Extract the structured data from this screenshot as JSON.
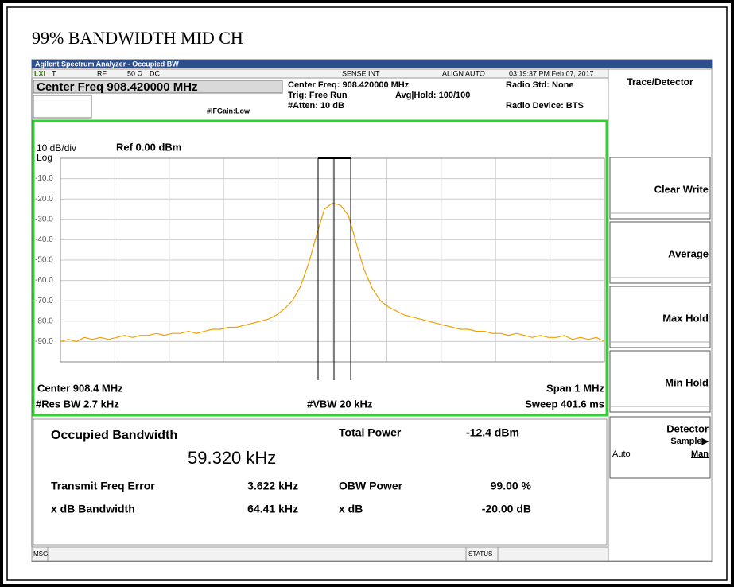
{
  "title": "99% BANDWIDTH MID CH",
  "window_title": "Agilent Spectrum Analyzer - Occupied BW",
  "status_bar": {
    "lxi": "LXI",
    "t": "T",
    "rf": "RF",
    "impedance": "50 Ω",
    "coupling": "DC",
    "sense": "SENSE:INT",
    "align": "ALIGN AUTO",
    "timestamp": "03:19:37 PM Feb 07, 2017"
  },
  "header": {
    "center_freq_box": "Center Freq 908.420000 MHz",
    "center_freq": "Center Freq: 908.420000 MHz",
    "trig": "Trig: Free Run",
    "avg_hold": "Avg|Hold: 100/100",
    "if_gain": "#IFGain:Low",
    "atten": "#Atten: 10 dB",
    "radio_std": "Radio Std: None",
    "radio_device": "Radio Device: BTS"
  },
  "plot": {
    "type": "line",
    "scale": "10 dB/div",
    "log": "Log",
    "ref": "Ref 0.00 dBm",
    "ylim": [
      -100,
      0
    ],
    "yticks": [
      {
        "value": -10,
        "label": "-10.0"
      },
      {
        "value": -20,
        "label": "-20.0"
      },
      {
        "value": -30,
        "label": "-30.0"
      },
      {
        "value": -40,
        "label": "-40.0"
      },
      {
        "value": -50,
        "label": "-50.0"
      },
      {
        "value": -60,
        "label": "-60.0"
      },
      {
        "value": -70,
        "label": "-70.0"
      },
      {
        "value": -80,
        "label": "-80.0"
      },
      {
        "value": -90,
        "label": "-90.0"
      }
    ],
    "color": "#f0a000",
    "values": [
      -90,
      -89,
      -90,
      -88,
      -89,
      -88,
      -89,
      -88,
      -87,
      -88,
      -87,
      -87,
      -86,
      -87,
      -86,
      -86,
      -85,
      -86,
      -85,
      -84,
      -84,
      -83,
      -83,
      -82,
      -81,
      -80,
      -79,
      -77,
      -74,
      -70,
      -63,
      -52,
      -38,
      -25,
      -22,
      -23,
      -28,
      -42,
      -55,
      -64,
      -70,
      -73,
      -75,
      -77,
      -78,
      -79,
      -80,
      -81,
      -82,
      -83,
      -84,
      -84,
      -85,
      -85,
      -86,
      -86,
      -87,
      -86,
      -87,
      -88,
      -87,
      -88,
      -88,
      -87,
      -89,
      -88,
      -89,
      -88,
      -90
    ],
    "center": "Center 908.4 MHz",
    "span": "Span 1 MHz",
    "res_bw": "#Res BW 2.7 kHz",
    "vbw": "#VBW 20 kHz",
    "sweep": "Sweep 401.6 ms"
  },
  "results": {
    "obw_label": "Occupied Bandwidth",
    "obw_value": "59.320 kHz",
    "total_power_label": "Total Power",
    "total_power_value": "-12.4 dBm",
    "freq_error_label": "Transmit Freq Error",
    "freq_error_value": "3.622 kHz",
    "obw_power_label": "OBW Power",
    "obw_power_value": "99.00 %",
    "xdb_bw_label": "x dB Bandwidth",
    "xdb_bw_value": "64.41 kHz",
    "xdb_label": "x dB",
    "xdb_value": "-20.00 dB"
  },
  "menu": {
    "title": "Trace/Detector",
    "buttons": [
      "Clear Write",
      "Average",
      "Max Hold",
      "Min Hold"
    ],
    "detector": "Detector",
    "sample": "Sample▶",
    "auto": "Auto",
    "man": "Man"
  },
  "footer": {
    "msg": "MSG",
    "status": "STATUS"
  }
}
